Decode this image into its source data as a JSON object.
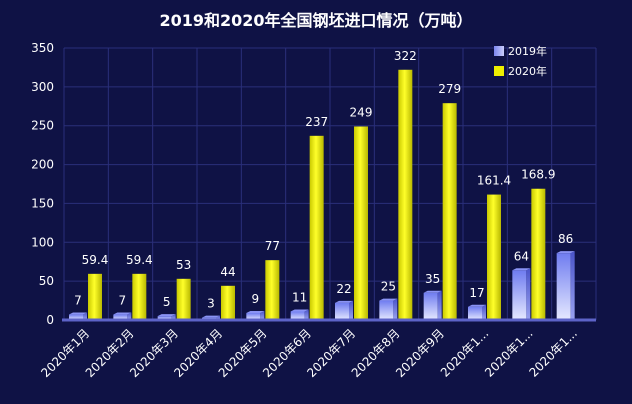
{
  "chart_data": {
    "type": "bar",
    "title": "2019和2020年全国钢坯进口情况（万吨）",
    "categories": [
      "2020年1月",
      "2020年2月",
      "2020年3月",
      "2020年4月",
      "2020年5月",
      "2020年6月",
      "2020年7月",
      "2020年8月",
      "2020年9月",
      "2020年1...",
      "2020年1...",
      "2020年1..."
    ],
    "series": [
      {
        "name": "2019年",
        "values": [
          7,
          7,
          5,
          3,
          9,
          11,
          22,
          25,
          35,
          17,
          64,
          86
        ],
        "labels": [
          "7",
          "7",
          "5",
          "3",
          "9",
          "11",
          "22",
          "25",
          "35",
          "17",
          "64",
          "86"
        ]
      },
      {
        "name": "2020年",
        "values": [
          59.4,
          59.4,
          53,
          44,
          77,
          237,
          249,
          322,
          279,
          161.4,
          168.9,
          null
        ],
        "labels": [
          "59.4",
          "59.4",
          "53",
          "44",
          "77",
          "237",
          "249",
          "322",
          "279",
          "161.4",
          "168.9",
          ""
        ]
      }
    ],
    "yticks": [
      "0",
      "50",
      "100",
      "150",
      "200",
      "250",
      "300",
      "350"
    ],
    "ylim": [
      0,
      350
    ],
    "legend_position": "top-right",
    "grid": true,
    "colors": {
      "background": "#0f1245",
      "grid": "#2a2f7a",
      "axis": "#5d63c8",
      "text": "#ffffff",
      "series_2019_top": "#6f7cf0",
      "series_2019_bottom": "#dfe4ff",
      "series_2020_top": "#f6f60a",
      "series_2020_bottom": "#9c9c00"
    }
  }
}
